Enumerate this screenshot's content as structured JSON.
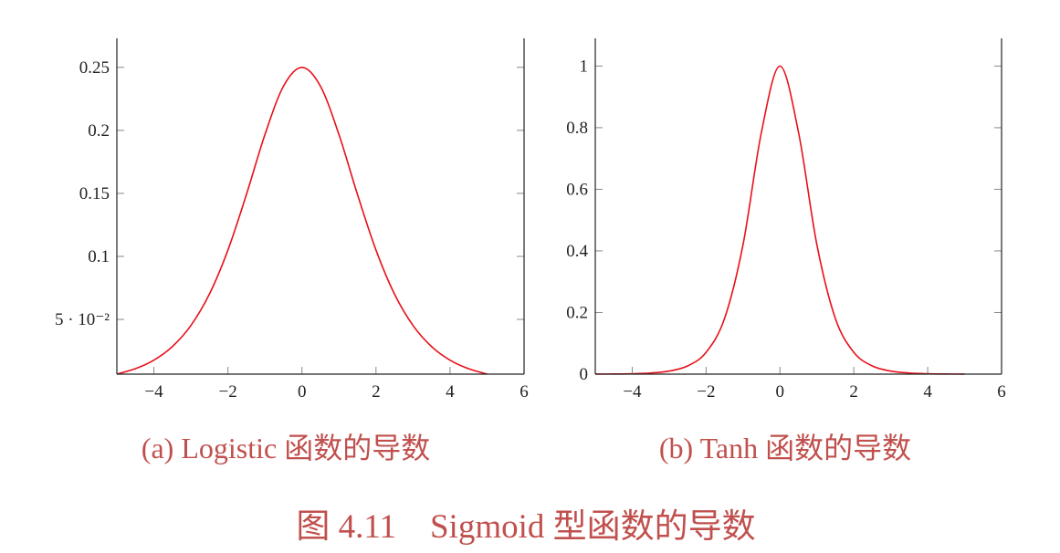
{
  "chart_data": [
    {
      "type": "line",
      "subcaption": "(a) Logistic 函数的导数",
      "xlim": [
        -5,
        6
      ],
      "ylim": [
        0.0066,
        0.273
      ],
      "xticks": [
        -4,
        -2,
        0,
        2,
        4,
        6
      ],
      "xtick_labels": [
        "−4",
        "−2",
        "0",
        "2",
        "4",
        "6"
      ],
      "yticks": [
        0.05,
        0.1,
        0.15,
        0.2,
        0.25
      ],
      "ytick_labels": [
        "5 · 10⁻²",
        "0.1",
        "0.15",
        "0.2",
        "0.25"
      ],
      "grid": false,
      "color": "#e8101a",
      "x": [
        -5,
        -4.5,
        -4,
        -3.5,
        -3,
        -2.5,
        -2,
        -1.5,
        -1,
        -0.5,
        0,
        0.5,
        1,
        1.5,
        2,
        2.5,
        3,
        3.5,
        4,
        4.5,
        5
      ],
      "y": [
        0.0066,
        0.0109,
        0.0177,
        0.0285,
        0.0452,
        0.0701,
        0.105,
        0.1491,
        0.1966,
        0.235,
        0.25,
        0.235,
        0.1966,
        0.1491,
        0.105,
        0.0701,
        0.0452,
        0.0285,
        0.0177,
        0.0109,
        0.0066
      ]
    },
    {
      "type": "line",
      "subcaption": "(b) Tanh 函数的导数",
      "xlim": [
        -5,
        6
      ],
      "ylim": [
        0,
        1.09
      ],
      "xticks": [
        -4,
        -2,
        0,
        2,
        4,
        6
      ],
      "xtick_labels": [
        "−4",
        "−2",
        "0",
        "2",
        "4",
        "6"
      ],
      "yticks": [
        0,
        0.2,
        0.4,
        0.6,
        0.8,
        1
      ],
      "ytick_labels": [
        "0",
        "0.2",
        "0.4",
        "0.6",
        "0.8",
        "1"
      ],
      "grid": false,
      "color": "#e8101a",
      "x": [
        -5,
        -4.5,
        -4,
        -3.5,
        -3,
        -2.5,
        -2,
        -1.5,
        -1,
        -0.5,
        0,
        0.5,
        1,
        1.5,
        2,
        2.5,
        3,
        3.5,
        4,
        4.5,
        5
      ],
      "y": [
        0.0002,
        0.0005,
        0.0013,
        0.0036,
        0.0099,
        0.0266,
        0.0707,
        0.1807,
        0.42,
        0.7864,
        1,
        0.7864,
        0.42,
        0.1807,
        0.0707,
        0.0266,
        0.0099,
        0.0036,
        0.0013,
        0.0005,
        0.0002
      ]
    }
  ],
  "figure_caption": "图 4.11　Sigmoid 型函数的导数"
}
